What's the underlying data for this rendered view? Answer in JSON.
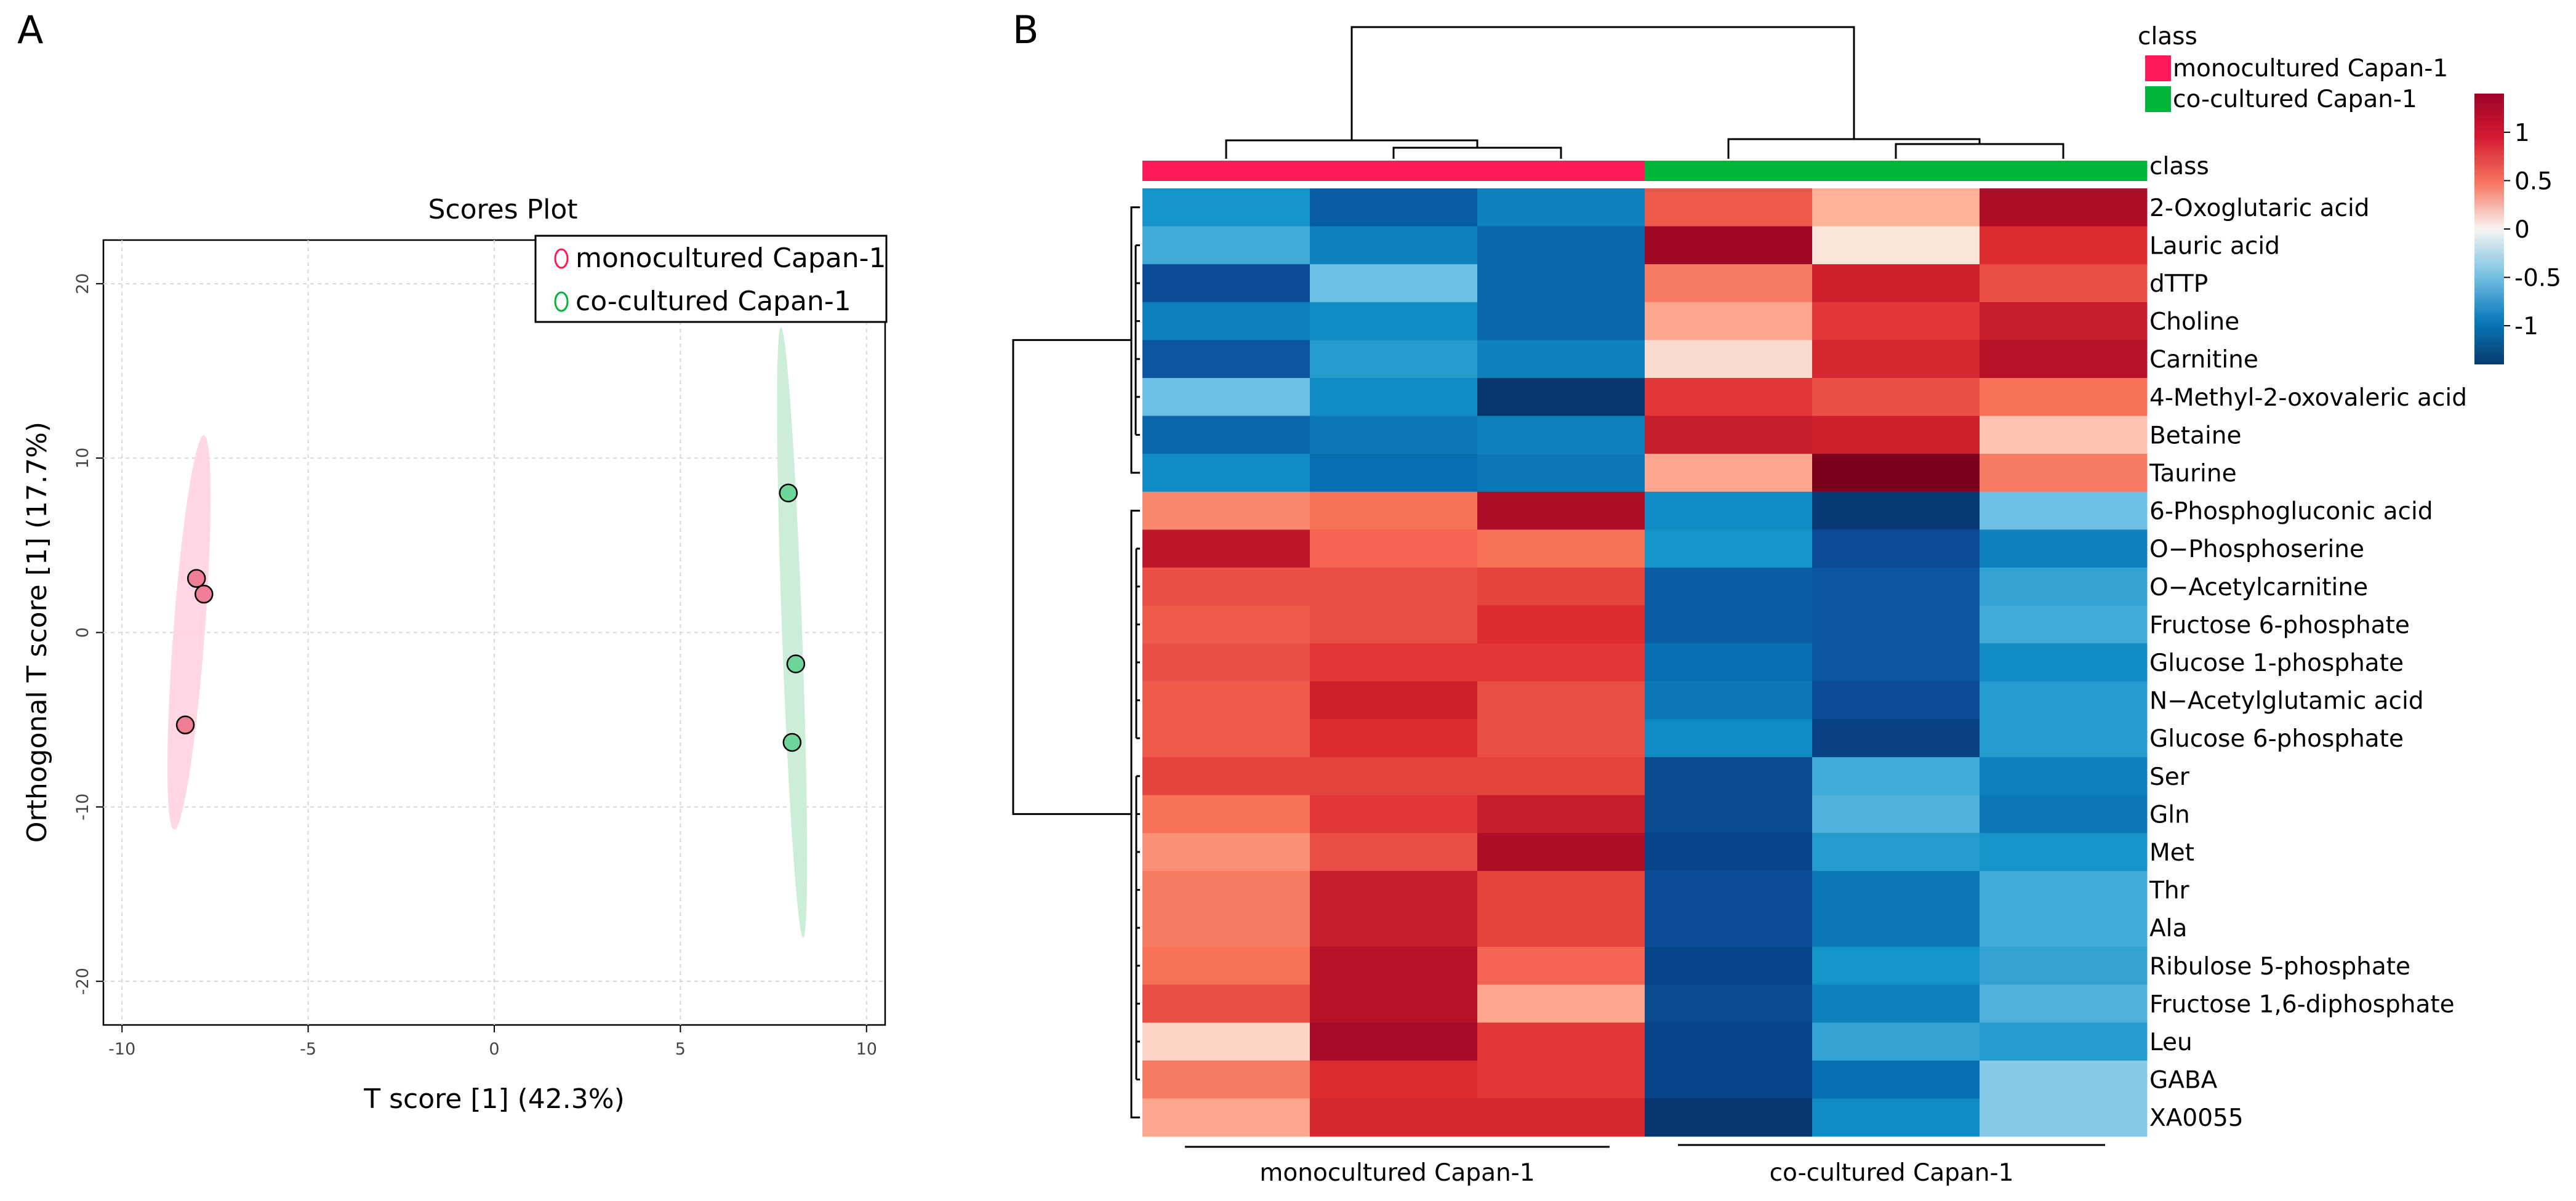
{
  "panels": {
    "a": "A",
    "b": "B"
  },
  "colors": {
    "mono": "#ff1a57",
    "co": "#00b33a",
    "mono_point": "#ee7e95",
    "co_point": "#6fd69a",
    "mono_ellipse": "#ffd4df",
    "co_ellipse": "#c9ecd5"
  },
  "chart_data": [
    {
      "type": "scatter",
      "title": "Scores Plot",
      "xlabel": "T score [1] (42.3%)",
      "ylabel": "Orthogonal T score [1] (17.7%)",
      "xlim": [
        -10.5,
        10.5
      ],
      "ylim": [
        -22.5,
        22.5
      ],
      "xticks": [
        -10,
        -5,
        0,
        5,
        10
      ],
      "yticks": [
        20,
        10,
        0,
        -10,
        -20
      ],
      "grid": true,
      "legend_position": "top-right",
      "series": [
        {
          "name": "monocultured Capan-1",
          "points": [
            [
              -8.0,
              3.1
            ],
            [
              -7.8,
              2.2
            ],
            [
              -8.3,
              -5.3
            ]
          ]
        },
        {
          "name": "co-cultured Capan-1",
          "points": [
            [
              7.9,
              8.0
            ],
            [
              8.1,
              -1.8
            ],
            [
              8.0,
              -6.3
            ]
          ]
        }
      ],
      "ellipses": [
        {
          "series": "monocultured Capan-1",
          "top": [
            -7.8,
            11.3
          ],
          "bottom": [
            -8.6,
            -11.3
          ],
          "half_width": 0.42
        },
        {
          "series": "co-cultured Capan-1",
          "top": [
            7.7,
            17.5
          ],
          "bottom": [
            8.3,
            -17.5
          ],
          "half_width": 0.27
        }
      ]
    },
    {
      "type": "heatmap",
      "legend_title": "class",
      "class_label": "class",
      "groups": [
        "monocultured Capan-1",
        "monocultured Capan-1",
        "monocultured Capan-1",
        "co-cultured Capan-1",
        "co-cultured Capan-1",
        "co-cultured Capan-1"
      ],
      "group_labels": [
        "monocultured Capan-1",
        "co-cultured Capan-1"
      ],
      "colorbar_ticks": [
        "1",
        "0.5",
        "0",
        "-0.5",
        "-1"
      ],
      "colorbar_tick_values": [
        1,
        0.5,
        0,
        -0.5,
        -1
      ],
      "colorbar_range": [
        -1.4,
        1.4
      ],
      "rows": [
        "2-Oxoglutaric acid",
        "Lauric acid",
        "dTTP",
        "Choline",
        "Carnitine",
        "4-Methyl-2-oxovaleric acid",
        "Betaine",
        "Taurine",
        "6-Phosphogluconic acid",
        "O−Phosphoserine",
        "O−Acetylcarnitine",
        "Fructose 6-phosphate",
        "Glucose 1-phosphate",
        "N−Acetylglutamic acid",
        "Glucose 6-phosphate",
        "Ser",
        "Gln",
        "Met",
        "Thr",
        "Ala",
        "Ribulose 5-phosphate",
        "Fructose 1,6-diphosphate",
        "Leu",
        "GABA",
        "XA0055"
      ],
      "values": [
        [
          -0.8,
          -1.1,
          -0.9,
          0.8,
          0.4,
          1.3
        ],
        [
          -0.65,
          -0.9,
          -1.05,
          1.4,
          0.1,
          1.0
        ],
        [
          -1.2,
          -0.5,
          -1.05,
          0.65,
          1.1,
          0.85
        ],
        [
          -0.9,
          -0.85,
          -1.05,
          0.45,
          0.95,
          1.15
        ],
        [
          -1.15,
          -0.75,
          -0.9,
          0.15,
          1.05,
          1.25
        ],
        [
          -0.5,
          -0.85,
          -1.55,
          0.95,
          0.85,
          0.7
        ],
        [
          -1.05,
          -0.95,
          -0.9,
          1.15,
          1.1,
          0.3
        ],
        [
          -0.85,
          -1.0,
          -0.95,
          0.45,
          1.6,
          0.65
        ],
        [
          0.6,
          0.7,
          1.3,
          -0.85,
          -1.45,
          -0.5
        ],
        [
          1.2,
          0.75,
          0.7,
          -0.8,
          -1.2,
          -0.9
        ],
        [
          0.85,
          0.85,
          0.9,
          -1.1,
          -1.15,
          -0.7
        ],
        [
          0.8,
          0.85,
          1.0,
          -1.1,
          -1.15,
          -0.65
        ],
        [
          0.85,
          0.95,
          0.95,
          -1.0,
          -1.15,
          -0.85
        ],
        [
          0.8,
          1.1,
          0.85,
          -0.95,
          -1.2,
          -0.75
        ],
        [
          0.8,
          1.0,
          0.85,
          -0.85,
          -1.35,
          -0.75
        ],
        [
          0.9,
          0.9,
          0.9,
          -1.25,
          -0.65,
          -0.9
        ],
        [
          0.7,
          0.95,
          1.15,
          -1.25,
          -0.6,
          -0.95
        ],
        [
          0.55,
          0.85,
          1.3,
          -1.3,
          -0.75,
          -0.8
        ],
        [
          0.65,
          1.15,
          0.9,
          -1.2,
          -0.95,
          -0.65
        ],
        [
          0.65,
          1.15,
          0.9,
          -1.2,
          -0.95,
          -0.65
        ],
        [
          0.7,
          1.25,
          0.75,
          -1.3,
          -0.8,
          -0.7
        ],
        [
          0.85,
          1.25,
          0.45,
          -1.25,
          -0.9,
          -0.6
        ],
        [
          0.2,
          1.35,
          0.95,
          -1.3,
          -0.7,
          -0.75
        ],
        [
          0.65,
          1.0,
          0.95,
          -1.3,
          -1.0,
          -0.4
        ],
        [
          0.45,
          1.05,
          1.05,
          -1.55,
          -0.85,
          -0.4
        ]
      ]
    }
  ]
}
